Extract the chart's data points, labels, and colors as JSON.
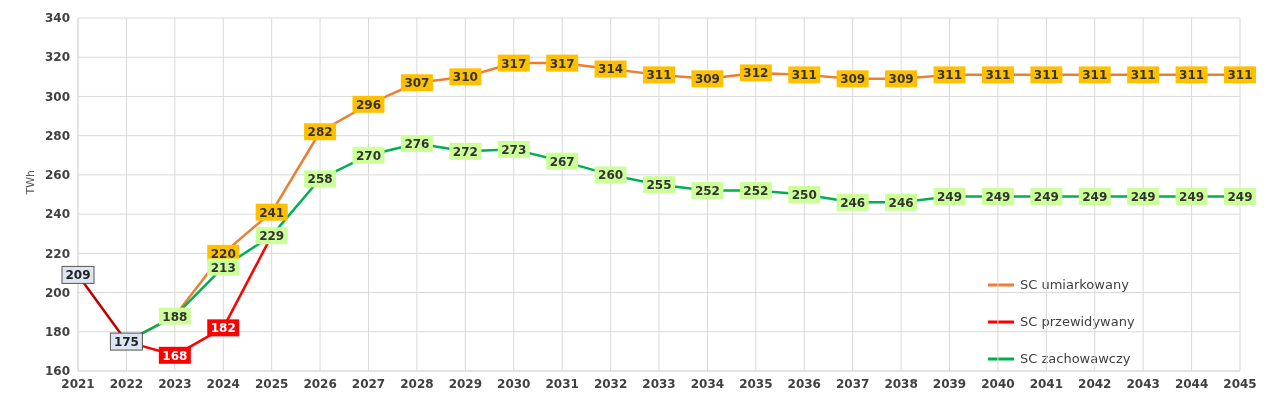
{
  "chart_data": {
    "type": "line",
    "ylabel": "TWh",
    "categories": [
      "2021",
      "2022",
      "2023",
      "2024",
      "2025",
      "2026",
      "2027",
      "2028",
      "2029",
      "2030",
      "2031",
      "2032",
      "2033",
      "2034",
      "2035",
      "2036",
      "2037",
      "2038",
      "2039",
      "2040",
      "2041",
      "2042",
      "2043",
      "2044",
      "2045"
    ],
    "series": [
      {
        "color": "#c00000",
        "values": [
          209,
          175,
          null,
          null,
          null,
          null,
          null,
          null,
          null,
          null,
          null,
          null,
          null,
          null,
          null,
          null,
          null,
          null,
          null,
          null,
          null,
          null,
          null,
          null,
          null
        ],
        "value_labels": [
          "209",
          "175",
          null,
          null,
          null,
          null,
          null,
          null,
          null,
          null,
          null,
          null,
          null,
          null,
          null,
          null,
          null,
          null,
          null,
          null,
          null,
          null,
          null,
          null,
          null
        ]
      },
      {
        "name": "SC umiarkowany",
        "color": "#ed7d31",
        "values": [
          null,
          175,
          188,
          220,
          241,
          282,
          296,
          307,
          310,
          317,
          317,
          314,
          311,
          309,
          312,
          311,
          309,
          309,
          311,
          311,
          311,
          311,
          311,
          311,
          311
        ],
        "value_labels": [
          null,
          null,
          null,
          "220",
          "241",
          "282",
          "296",
          "307",
          "310",
          "317",
          "317",
          "314",
          "311",
          "309",
          "312",
          "311",
          "309",
          "309",
          "311",
          "311",
          "311",
          "311",
          "311",
          "311",
          "311"
        ]
      },
      {
        "name": "SC przewidywany",
        "color": "#ff0000",
        "values": [
          null,
          175,
          168,
          182,
          229,
          null,
          null,
          null,
          null,
          null,
          null,
          null,
          null,
          null,
          null,
          null,
          null,
          null,
          null,
          null,
          null,
          null,
          null,
          null,
          null
        ],
        "value_labels": [
          null,
          null,
          "168",
          "182",
          null,
          null,
          null,
          null,
          null,
          null,
          null,
          null,
          null,
          null,
          null,
          null,
          null,
          null,
          null,
          null,
          null,
          null,
          null,
          null,
          null
        ]
      },
      {
        "name": "SC zachowawczy",
        "color": "#00b050",
        "values": [
          null,
          175,
          188,
          213,
          229,
          258,
          270,
          276,
          272,
          273,
          267,
          260,
          255,
          252,
          252,
          250,
          246,
          246,
          249,
          249,
          249,
          249,
          249,
          249,
          249
        ],
        "value_labels": [
          null,
          null,
          "188",
          "213",
          "229",
          "258",
          "270",
          "276",
          "272",
          "273",
          "267",
          "260",
          "255",
          "252",
          "252",
          "250",
          "246",
          "246",
          "249",
          "249",
          "249",
          "249",
          "249",
          "249",
          "249"
        ]
      }
    ],
    "ylim": [
      160,
      340
    ],
    "yticks": [
      160,
      180,
      200,
      220,
      240,
      260,
      280,
      300,
      320,
      340
    ],
    "grid": true,
    "legend": "right",
    "marker": "square",
    "line_style": "solid"
  }
}
